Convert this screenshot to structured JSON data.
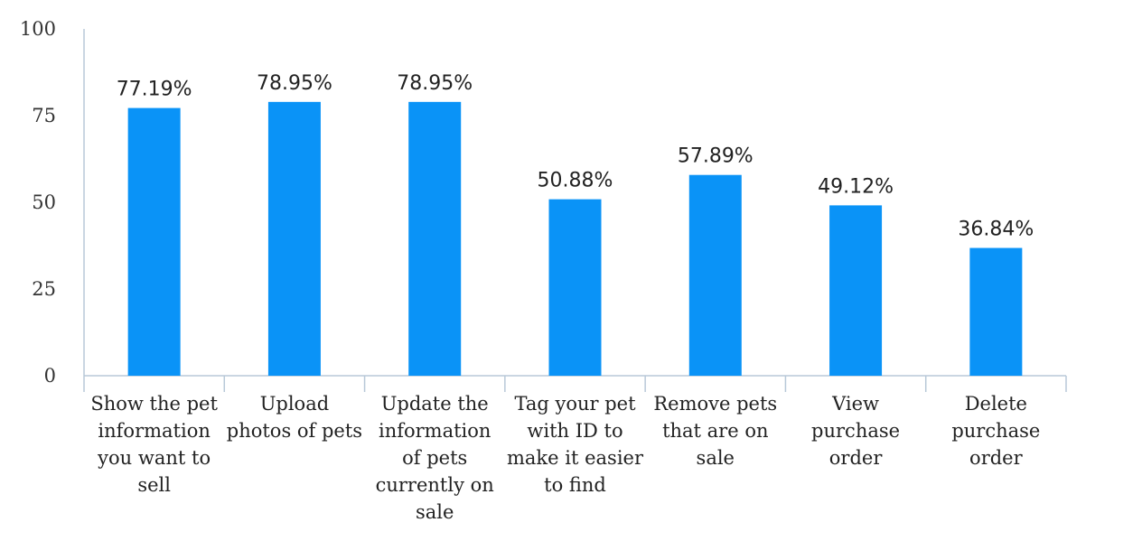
{
  "chart_data": {
    "type": "bar",
    "title": "",
    "xlabel": "",
    "ylabel": "",
    "categories": [
      [
        "Show the pet",
        "information",
        "you want to",
        "sell"
      ],
      [
        "Upload",
        "photos of pets"
      ],
      [
        "Update the",
        "information",
        "of pets",
        "currently on",
        "sale"
      ],
      [
        "Tag your pet",
        "with ID to",
        "make it easier",
        "to find"
      ],
      [
        "Remove pets",
        "that are on",
        "sale"
      ],
      [
        "View",
        "purchase",
        "order"
      ],
      [
        "Delete",
        "purchase",
        "order"
      ]
    ],
    "values": [
      77.19,
      78.95,
      78.95,
      50.88,
      57.89,
      49.12,
      36.84
    ],
    "data_labels": [
      "77.19%",
      "78.95%",
      "78.95%",
      "50.88%",
      "57.89%",
      "49.12%",
      "36.84%"
    ],
    "ylim": [
      0,
      100
    ],
    "yticks": [
      0,
      25,
      50,
      75,
      100
    ],
    "grid": false,
    "legend": "none",
    "bar_color": "#0a93f7"
  }
}
